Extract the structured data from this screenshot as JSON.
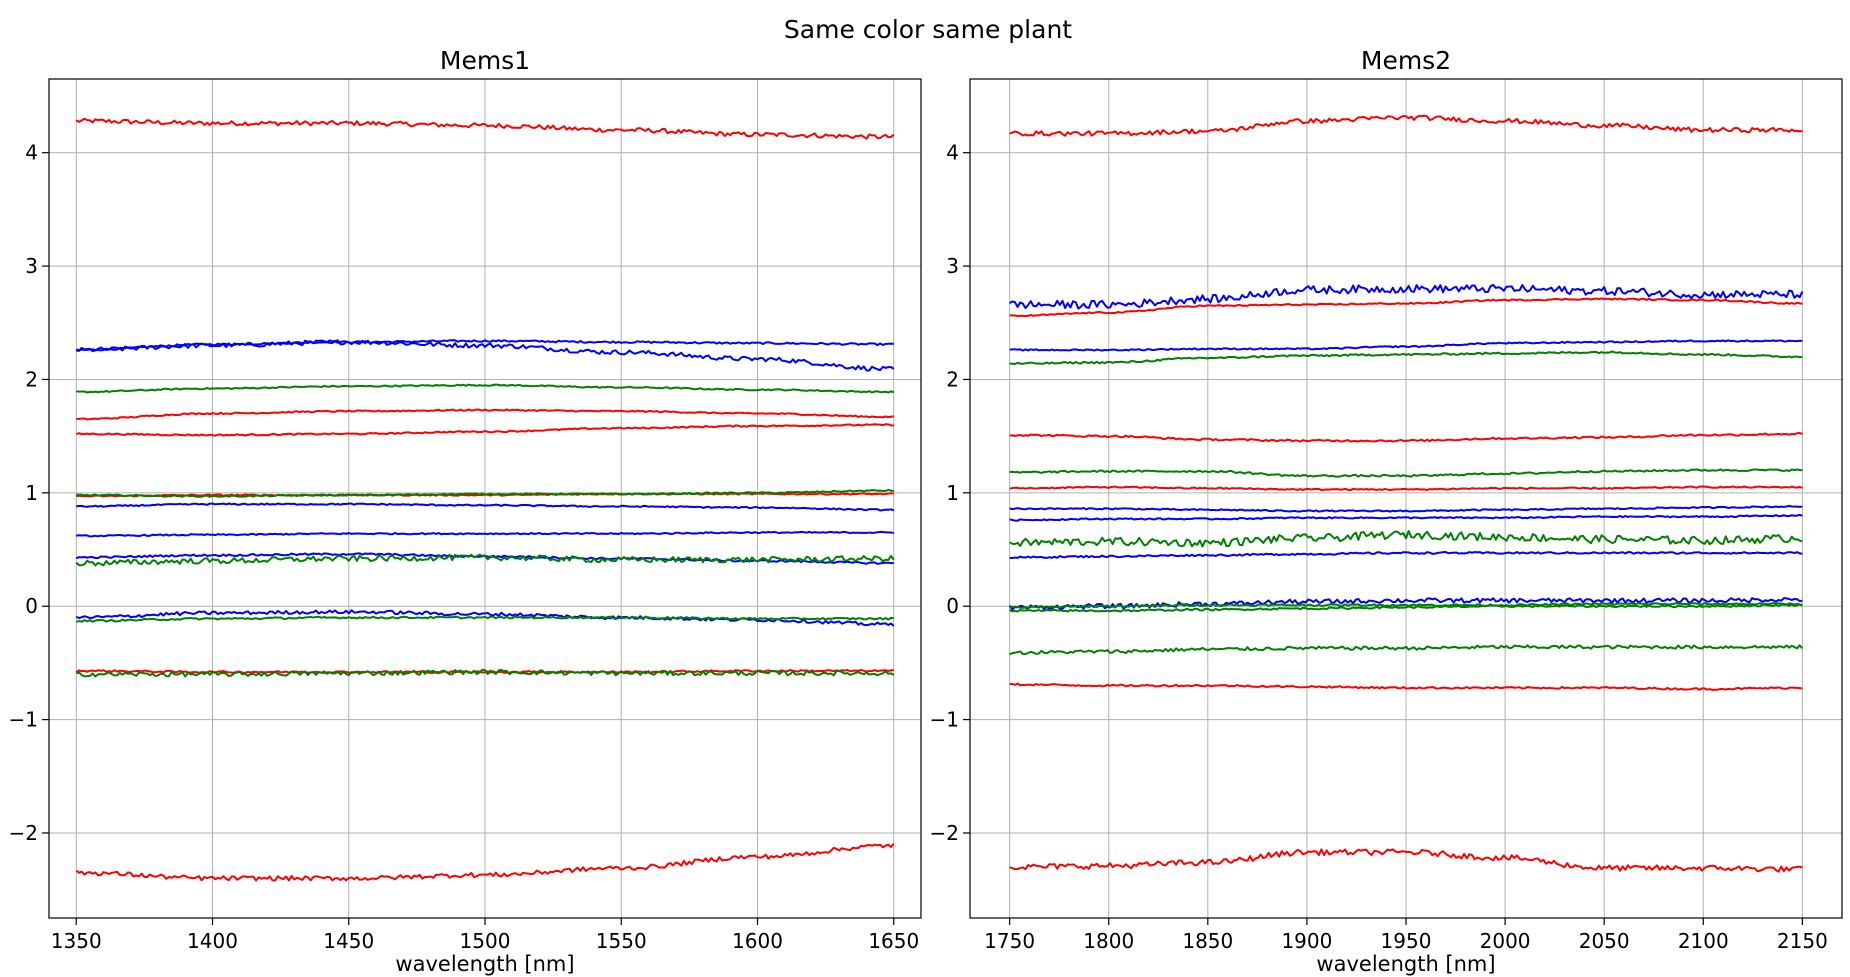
{
  "suptitle": "Same color same plant",
  "colors": {
    "red": "#ff0000",
    "green": "#008000",
    "blue": "#0000ff"
  },
  "chart_data": [
    {
      "type": "line",
      "title": "Mems1",
      "xlabel": "wavelength [nm]",
      "ylabel": "",
      "xlim": [
        1340,
        1660
      ],
      "ylim": [
        -2.75,
        4.65
      ],
      "x_ticks": [
        1350,
        1400,
        1450,
        1500,
        1550,
        1600,
        1650
      ],
      "y_ticks": [
        -2,
        -1,
        0,
        1,
        2,
        3,
        4
      ],
      "grid": true,
      "x_range": [
        1350,
        1650
      ],
      "series": [
        {
          "color": "red",
          "anchors": [
            4.28,
            4.26,
            4.26,
            4.24,
            4.2,
            4.16,
            4.14
          ],
          "noise": 0.02
        },
        {
          "color": "blue",
          "anchors": [
            2.26,
            2.31,
            2.33,
            2.34,
            2.33,
            2.32,
            2.31
          ],
          "noise": 0.008
        },
        {
          "color": "blue",
          "anchors": [
            2.26,
            2.3,
            2.33,
            2.3,
            2.24,
            2.18,
            2.09
          ],
          "noise": 0.02
        },
        {
          "color": "green",
          "anchors": [
            1.89,
            1.92,
            1.94,
            1.95,
            1.93,
            1.91,
            1.89
          ],
          "noise": 0.006
        },
        {
          "color": "red",
          "anchors": [
            1.65,
            1.7,
            1.72,
            1.73,
            1.72,
            1.7,
            1.67
          ],
          "noise": 0.006
        },
        {
          "color": "red",
          "anchors": [
            1.52,
            1.51,
            1.52,
            1.54,
            1.57,
            1.59,
            1.6
          ],
          "noise": 0.006
        },
        {
          "color": "red",
          "anchors": [
            0.97,
            0.98,
            0.98,
            0.98,
            0.99,
            0.99,
            0.99
          ],
          "noise": 0.006
        },
        {
          "color": "green",
          "anchors": [
            0.98,
            0.97,
            0.98,
            0.99,
            0.99,
            1.0,
            1.02
          ],
          "noise": 0.006
        },
        {
          "color": "blue",
          "anchors": [
            0.88,
            0.9,
            0.9,
            0.89,
            0.88,
            0.87,
            0.85
          ],
          "noise": 0.006
        },
        {
          "color": "blue",
          "anchors": [
            0.62,
            0.63,
            0.64,
            0.64,
            0.64,
            0.65,
            0.65
          ],
          "noise": 0.006
        },
        {
          "color": "blue",
          "anchors": [
            0.43,
            0.45,
            0.46,
            0.44,
            0.42,
            0.4,
            0.38
          ],
          "noise": 0.008
        },
        {
          "color": "green",
          "anchors": [
            0.38,
            0.4,
            0.42,
            0.43,
            0.41,
            0.41,
            0.42
          ],
          "noise": 0.025
        },
        {
          "color": "blue",
          "anchors": [
            -0.1,
            -0.06,
            -0.05,
            -0.07,
            -0.1,
            -0.12,
            -0.16
          ],
          "noise": 0.015
        },
        {
          "color": "green",
          "anchors": [
            -0.13,
            -0.11,
            -0.1,
            -0.1,
            -0.1,
            -0.11,
            -0.11
          ],
          "noise": 0.008
        },
        {
          "color": "red",
          "anchors": [
            -0.57,
            -0.58,
            -0.58,
            -0.58,
            -0.58,
            -0.57,
            -0.57
          ],
          "noise": 0.008
        },
        {
          "color": "green",
          "anchors": [
            -0.6,
            -0.6,
            -0.59,
            -0.58,
            -0.59,
            -0.59,
            -0.59
          ],
          "noise": 0.02
        },
        {
          "color": "red",
          "anchors": [
            -2.35,
            -2.4,
            -2.4,
            -2.37,
            -2.31,
            -2.21,
            -2.11
          ],
          "noise": 0.02
        }
      ]
    },
    {
      "type": "line",
      "title": "Mems2",
      "xlabel": "wavelength [nm]",
      "ylabel": "",
      "xlim": [
        1730,
        2170
      ],
      "ylim": [
        -2.75,
        4.65
      ],
      "x_ticks": [
        1750,
        1800,
        1850,
        1900,
        1950,
        2000,
        2050,
        2100,
        2150
      ],
      "y_ticks": [
        -2,
        -1,
        0,
        1,
        2,
        3,
        4
      ],
      "grid": true,
      "x_range": [
        1750,
        2150
      ],
      "series": [
        {
          "color": "red",
          "anchors": [
            4.17,
            4.17,
            4.19,
            4.28,
            4.31,
            4.28,
            4.24,
            4.2,
            4.2
          ],
          "noise": 0.02
        },
        {
          "color": "blue",
          "anchors": [
            2.66,
            2.66,
            2.71,
            2.79,
            2.8,
            2.8,
            2.78,
            2.75,
            2.75
          ],
          "noise": 0.035
        },
        {
          "color": "red",
          "anchors": [
            2.56,
            2.59,
            2.65,
            2.66,
            2.67,
            2.7,
            2.71,
            2.7,
            2.67
          ],
          "noise": 0.006
        },
        {
          "color": "blue",
          "anchors": [
            2.26,
            2.26,
            2.27,
            2.27,
            2.29,
            2.32,
            2.33,
            2.34,
            2.34
          ],
          "noise": 0.006
        },
        {
          "color": "green",
          "anchors": [
            2.14,
            2.15,
            2.19,
            2.21,
            2.22,
            2.23,
            2.24,
            2.22,
            2.2
          ],
          "noise": 0.008
        },
        {
          "color": "red",
          "anchors": [
            1.51,
            1.5,
            1.47,
            1.46,
            1.46,
            1.48,
            1.49,
            1.51,
            1.52
          ],
          "noise": 0.008
        },
        {
          "color": "green",
          "anchors": [
            1.18,
            1.19,
            1.19,
            1.15,
            1.15,
            1.17,
            1.19,
            1.2,
            1.2
          ],
          "noise": 0.008
        },
        {
          "color": "red",
          "anchors": [
            1.04,
            1.05,
            1.04,
            1.03,
            1.03,
            1.04,
            1.04,
            1.05,
            1.05
          ],
          "noise": 0.006
        },
        {
          "color": "blue",
          "anchors": [
            0.86,
            0.86,
            0.85,
            0.84,
            0.84,
            0.85,
            0.86,
            0.87,
            0.88
          ],
          "noise": 0.006
        },
        {
          "color": "blue",
          "anchors": [
            0.76,
            0.77,
            0.77,
            0.78,
            0.78,
            0.78,
            0.79,
            0.79,
            0.8
          ],
          "noise": 0.006
        },
        {
          "color": "green",
          "anchors": [
            0.56,
            0.57,
            0.56,
            0.6,
            0.63,
            0.61,
            0.59,
            0.58,
            0.6
          ],
          "noise": 0.035
        },
        {
          "color": "blue",
          "anchors": [
            0.43,
            0.44,
            0.45,
            0.46,
            0.47,
            0.47,
            0.47,
            0.47,
            0.47
          ],
          "noise": 0.008
        },
        {
          "color": "blue",
          "anchors": [
            -0.01,
            0.0,
            0.02,
            0.04,
            0.05,
            0.05,
            0.05,
            0.05,
            0.06
          ],
          "noise": 0.02
        },
        {
          "color": "green",
          "anchors": [
            -0.01,
            0.0,
            0.01,
            0.01,
            0.01,
            0.01,
            0.02,
            0.02,
            0.02
          ],
          "noise": 0.008
        },
        {
          "color": "green",
          "anchors": [
            -0.04,
            -0.04,
            -0.03,
            -0.02,
            -0.01,
            0.0,
            0.0,
            0.0,
            0.01
          ],
          "noise": 0.008
        },
        {
          "color": "green",
          "anchors": [
            -0.41,
            -0.4,
            -0.38,
            -0.37,
            -0.37,
            -0.36,
            -0.36,
            -0.36,
            -0.36
          ],
          "noise": 0.015
        },
        {
          "color": "red",
          "anchors": [
            -0.69,
            -0.7,
            -0.7,
            -0.71,
            -0.72,
            -0.72,
            -0.72,
            -0.73,
            -0.72
          ],
          "noise": 0.008
        },
        {
          "color": "red",
          "anchors": [
            -2.3,
            -2.29,
            -2.26,
            -2.17,
            -2.17,
            -2.22,
            -2.31,
            -2.31,
            -2.32
          ],
          "noise": 0.025
        }
      ]
    }
  ]
}
